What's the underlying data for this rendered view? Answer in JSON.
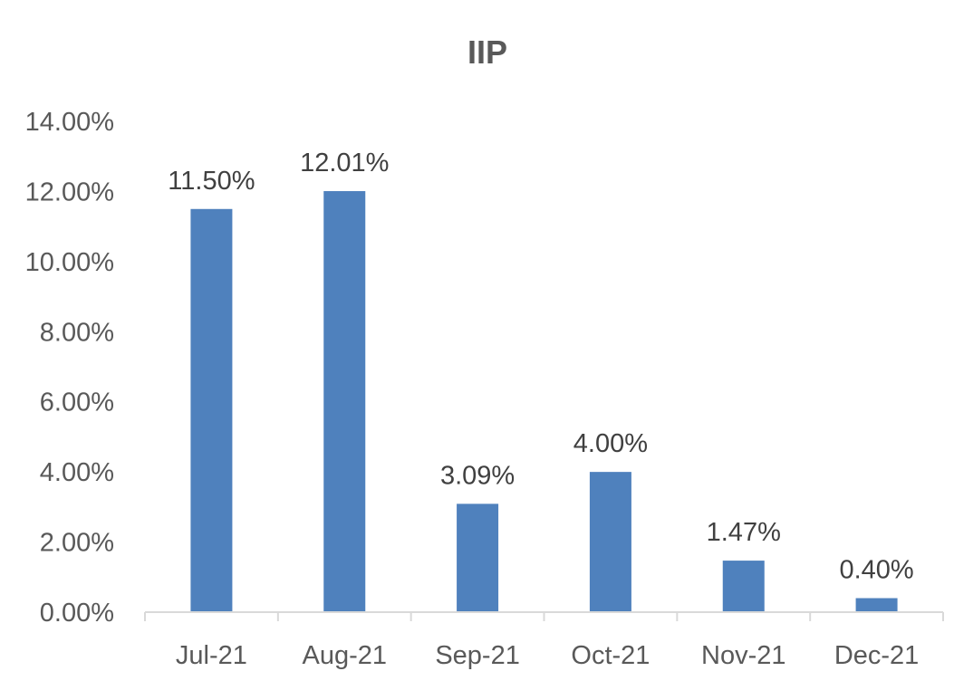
{
  "chart_data": {
    "type": "bar",
    "title": "IIP",
    "xlabel": "",
    "ylabel": "",
    "categories": [
      "Jul-21",
      "Aug-21",
      "Sep-21",
      "Oct-21",
      "Nov-21",
      "Dec-21"
    ],
    "values": [
      11.5,
      12.01,
      3.09,
      4.0,
      1.47,
      0.4
    ],
    "data_labels": [
      "11.50%",
      "12.01%",
      "3.09%",
      "4.00%",
      "1.47%",
      "0.40%"
    ],
    "ylim": [
      0,
      14
    ],
    "yticks": [
      0,
      2,
      4,
      6,
      8,
      10,
      12,
      14
    ],
    "ytick_labels": [
      "0.00%",
      "2.00%",
      "4.00%",
      "6.00%",
      "8.00%",
      "10.00%",
      "12.00%",
      "14.00%"
    ],
    "grid": false,
    "legend": "none",
    "colors": {
      "bar": "#4f81bd",
      "axis": "#d9d9d9",
      "text": "#595959"
    }
  }
}
